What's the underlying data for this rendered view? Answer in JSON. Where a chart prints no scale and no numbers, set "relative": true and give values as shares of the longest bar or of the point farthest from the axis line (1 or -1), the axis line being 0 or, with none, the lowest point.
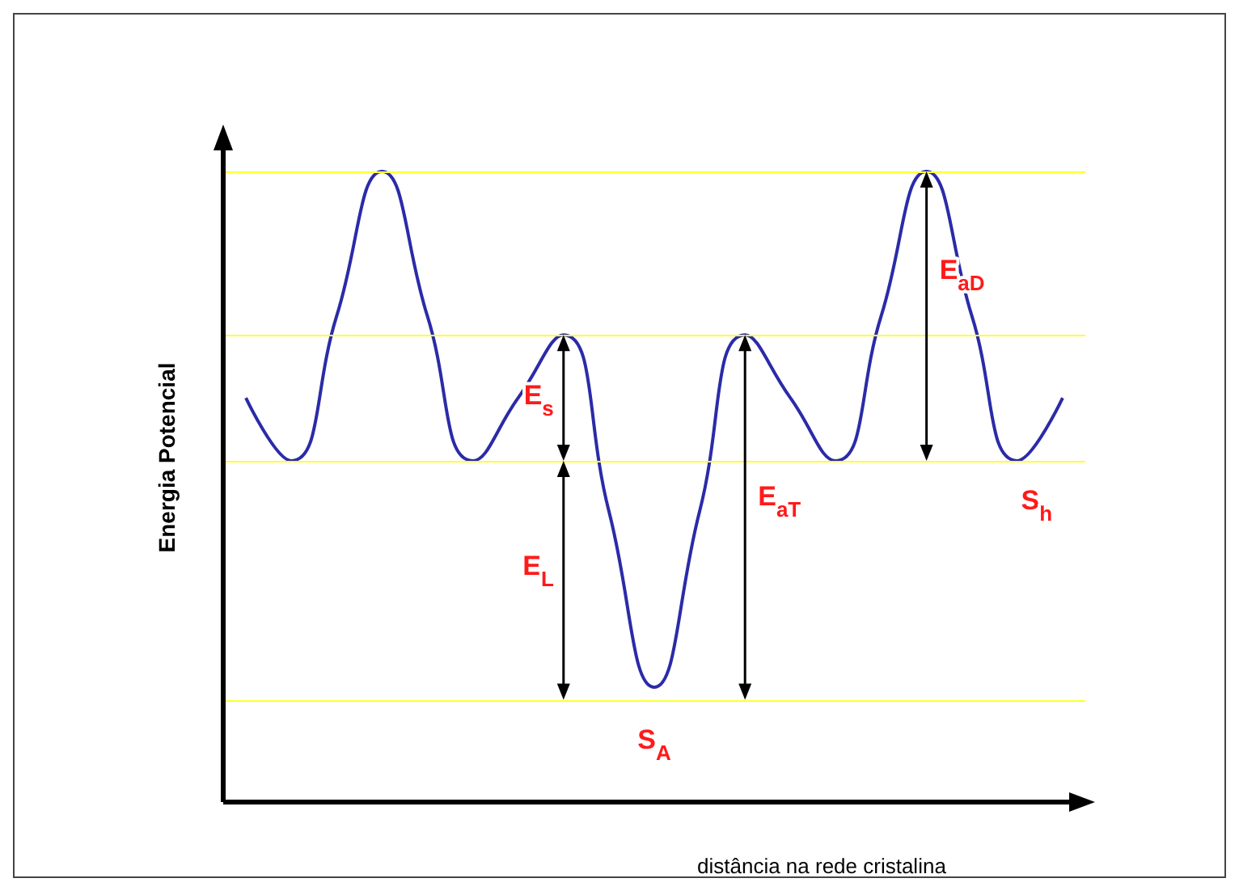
{
  "chart_data": {
    "type": "line",
    "relative": true,
    "xlabel": "distância na rede cristalina",
    "ylabel": "Energia Potencial",
    "marker": "none",
    "categories": [
      null,
      null,
      null,
      null,
      null,
      null,
      null,
      null,
      null,
      null,
      null,
      null,
      null,
      null,
      null,
      null,
      null,
      null,
      null
    ],
    "series": [
      {
        "color": "#2b2ba8",
        "values": [
          0.64,
          0.54,
          0.77,
          1.0,
          0.77,
          0.54,
          0.64,
          0.74,
          0.46,
          0.18,
          0.46,
          0.74,
          0.64,
          0.54,
          0.77,
          1.0,
          0.77,
          0.54,
          0.64
        ]
      }
    ],
    "ref_lines": [
      {
        "axis": "y",
        "value": 1.0,
        "color": "#ffff33"
      },
      {
        "axis": "y",
        "value": 0.74,
        "color": "#ffff33"
      },
      {
        "axis": "y",
        "value": 0.54,
        "color": "#ffff33"
      },
      {
        "axis": "y",
        "value": 0.16,
        "color": "#ffff33"
      }
    ],
    "annotations": [
      "E$_{s}$",
      "E$_{L}$",
      "E$_{aT}$",
      "E$_{aD}$",
      "S$_{A}$",
      "S$_{h}$"
    ]
  }
}
